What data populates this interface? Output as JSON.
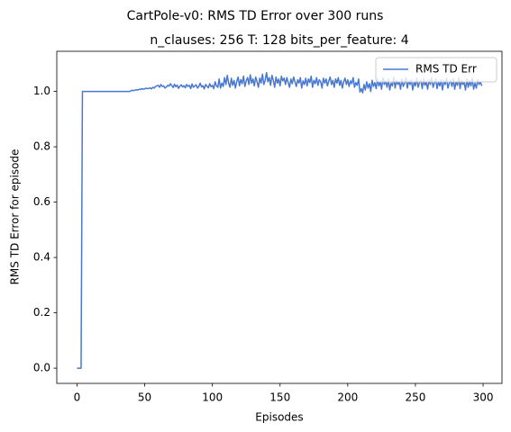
{
  "chart_data": {
    "type": "line",
    "suptitle": "CartPole-v0: RMS TD Error over 300 runs",
    "title": "n_clauses: 256 T: 128 bits_per_feature: 4",
    "x_label": "Episodes",
    "y_label": "RMS TD Error for episode",
    "x": [
      0,
      1,
      2,
      3,
      4,
      5,
      6,
      7,
      8,
      9,
      10,
      11,
      12,
      13,
      14,
      15,
      16,
      17,
      18,
      19,
      20,
      21,
      22,
      23,
      24,
      25,
      26,
      27,
      28,
      29,
      30,
      31,
      32,
      33,
      34,
      35,
      36,
      37,
      38,
      39,
      40,
      41,
      42,
      43,
      44,
      45,
      46,
      47,
      48,
      49,
      50,
      51,
      52,
      53,
      54,
      55,
      56,
      57,
      58,
      59,
      60,
      61,
      62,
      63,
      64,
      65,
      66,
      67,
      68,
      69,
      70,
      71,
      72,
      73,
      74,
      75,
      76,
      77,
      78,
      79,
      80,
      81,
      82,
      83,
      84,
      85,
      86,
      87,
      88,
      89,
      90,
      91,
      92,
      93,
      94,
      95,
      96,
      97,
      98,
      99,
      100,
      101,
      102,
      103,
      104,
      105,
      106,
      107,
      108,
      109,
      110,
      111,
      112,
      113,
      114,
      115,
      116,
      117,
      118,
      119,
      120,
      121,
      122,
      123,
      124,
      125,
      126,
      127,
      128,
      129,
      130,
      131,
      132,
      133,
      134,
      135,
      136,
      137,
      138,
      139,
      140,
      141,
      142,
      143,
      144,
      145,
      146,
      147,
      148,
      149,
      150,
      151,
      152,
      153,
      154,
      155,
      156,
      157,
      158,
      159,
      160,
      161,
      162,
      163,
      164,
      165,
      166,
      167,
      168,
      169,
      170,
      171,
      172,
      173,
      174,
      175,
      176,
      177,
      178,
      179,
      180,
      181,
      182,
      183,
      184,
      185,
      186,
      187,
      188,
      189,
      190,
      191,
      192,
      193,
      194,
      195,
      196,
      197,
      198,
      199,
      200,
      201,
      202,
      203,
      204,
      205,
      206,
      207,
      208,
      209,
      210,
      211,
      212,
      213,
      214,
      215,
      216,
      217,
      218,
      219,
      220,
      221,
      222,
      223,
      224,
      225,
      226,
      227,
      228,
      229,
      230,
      231,
      232,
      233,
      234,
      235,
      236,
      237,
      238,
      239,
      240,
      241,
      242,
      243,
      244,
      245,
      246,
      247,
      248,
      249,
      250,
      251,
      252,
      253,
      254,
      255,
      256,
      257,
      258,
      259,
      260,
      261,
      262,
      263,
      264,
      265,
      266,
      267,
      268,
      269,
      270,
      271,
      272,
      273,
      274,
      275,
      276,
      277,
      278,
      279,
      280,
      281,
      282,
      283,
      284,
      285,
      286,
      287,
      288,
      289,
      290,
      291,
      292,
      293,
      294,
      295,
      296,
      297,
      298,
      299
    ],
    "series": [
      {
        "name": "RMS TD Err",
        "color": "#4878d0",
        "values": [
          0,
          0,
          0,
          0,
          1,
          1,
          1,
          1,
          1,
          1,
          1,
          1,
          1,
          1,
          1,
          1,
          1,
          1,
          1,
          1,
          1,
          1,
          1,
          1,
          1,
          1,
          1,
          1,
          1,
          1,
          1,
          1,
          1,
          1,
          1,
          1,
          1,
          1,
          1,
          1,
          1.003,
          1.004,
          1.003,
          1.005,
          1.006,
          1.005,
          1.008,
          1.007,
          1.01,
          1.008,
          1.009,
          1.012,
          1.01,
          1.011,
          1.013,
          1.009,
          1.015,
          1.012,
          1.018,
          1.02,
          1.022,
          1.015,
          1.025,
          1.018,
          1.02,
          1.012,
          1.016,
          1.022,
          1.019,
          1.028,
          1.021,
          1.014,
          1.026,
          1.017,
          1.023,
          1.011,
          1.019,
          1.024,
          1.016,
          1.021,
          1.013,
          1.025,
          1.018,
          1.022,
          1.01,
          1.027,
          1.015,
          1.02,
          1.024,
          1.012,
          1.018,
          1.03,
          1.016,
          1.021,
          1.009,
          1.025,
          1.019,
          1.013,
          1.028,
          1.017,
          1.022,
          1.01,
          1.035,
          1.02,
          1.015,
          1.045,
          1.012,
          1.03,
          1.018,
          1.05,
          1.025,
          1.058,
          1.03,
          1.015,
          1.048,
          1.022,
          1.04,
          1.012,
          1.036,
          1.052,
          1.02,
          1.043,
          1.028,
          1.055,
          1.018,
          1.038,
          1.05,
          1.025,
          1.06,
          1.03,
          1.045,
          1.02,
          1.052,
          1.035,
          1.015,
          1.048,
          1.03,
          1.062,
          1.025,
          1.04,
          1.068,
          1.035,
          1.05,
          1.022,
          1.058,
          1.04,
          1.015,
          1.052,
          1.03,
          1.045,
          1.02,
          1.055,
          1.038,
          1.048,
          1.025,
          1.05,
          1.032,
          1.015,
          1.045,
          1.028,
          1.052,
          1.035,
          1.018,
          1.042,
          1.03,
          1.05,
          1.012,
          1.038,
          1.025,
          1.048,
          1.02,
          1.045,
          1.032,
          1.055,
          1.015,
          1.04,
          1.028,
          1.05,
          1.022,
          1.042,
          1.035,
          1.012,
          1.048,
          1.03,
          1.045,
          1.02,
          1.038,
          1.052,
          1.025,
          1.04,
          1.015,
          1.045,
          1.03,
          1.05,
          1.022,
          1.04,
          1.012,
          1.035,
          1.048,
          1.025,
          1.042,
          1.018,
          1.038,
          1.028,
          1.05,
          1.015,
          1.032,
          1.022,
          1.045,
          0.998,
          1.01,
          0.995,
          1.025,
          1.005,
          1.035,
          1.012,
          1.028,
          1.0,
          1.04,
          1.018,
          1.032,
          1.01,
          1.045,
          1.02,
          1.035,
          1.008,
          1.05,
          1.025,
          1.038,
          1.015,
          1.045,
          1.005,
          1.03,
          1.02,
          1.052,
          1.012,
          1.04,
          1.025,
          1.035,
          1.008,
          1.045,
          1.018,
          1.03,
          1.05,
          1.012,
          1.038,
          1.025,
          1.042,
          1.005,
          1.035,
          1.02,
          1.048,
          1.015,
          1.032,
          1.04,
          1.01,
          1.045,
          1.022,
          1.035,
          1.008,
          1.04,
          1.025,
          1.05,
          1.015,
          1.03,
          1.045,
          1.01,
          1.035,
          1.02,
          1.042,
          1.005,
          1.038,
          1.025,
          1.048,
          1.012,
          1.03,
          1.04,
          1.018,
          1.045,
          1.008,
          1.035,
          1.022,
          1.05,
          1.01,
          1.04,
          1.025,
          1.032,
          1.005,
          1.045,
          1.015,
          1.038,
          1.02,
          1.048,
          1.008,
          1.03,
          1.012,
          1.042,
          1.025,
          1.035,
          1.02
        ]
      }
    ],
    "xlim": [
      -14.95,
      313.95
    ],
    "xticks": [
      0,
      50,
      100,
      150,
      200,
      250,
      300
    ],
    "ylim": [
      -0.055,
      1.145
    ],
    "yticks": [
      {
        "value": 0,
        "label": "0.0"
      },
      {
        "value": 0.2,
        "label": "0.2"
      },
      {
        "value": 0.4,
        "label": "0.4"
      },
      {
        "value": 0.6,
        "label": "0.6"
      },
      {
        "value": 0.8,
        "label": "0.8"
      },
      {
        "value": 1,
        "label": "1.0"
      }
    ],
    "legend": "upper right",
    "grid": false
  }
}
